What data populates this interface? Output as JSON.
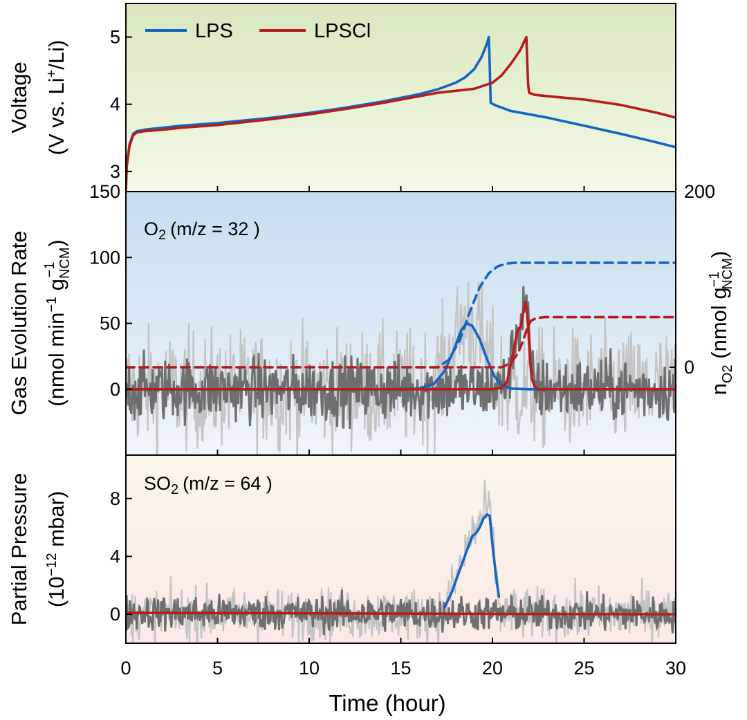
{
  "colors": {
    "lps": "#1565c0",
    "lpscl": "#b71c1c",
    "raw_dark": "#6e6e6e",
    "raw_light": "#c4c4c4",
    "panel1_top": "#d9e8bf",
    "panel1_bottom": "#f4f9e8",
    "panel2_top": "#c6ddef",
    "panel2_bottom": "#f0f5fb",
    "panel3_top": "#fbf6ec",
    "panel3_bottom": "#fbe9e6"
  },
  "chart_data": [
    {
      "id": "voltage",
      "type": "line",
      "ylabel_line1": "Voltage",
      "ylabel_line2_prefix": "(V vs. Li",
      "ylabel_line2_sup": "+",
      "ylabel_line2_suffix": "/Li)",
      "ylim": [
        2.7,
        5.5
      ],
      "yticks": [
        3,
        4,
        5
      ],
      "xlim": [
        0,
        30
      ],
      "legend": {
        "placement": "top-left",
        "entries": [
          "LPS",
          "LPSCl"
        ]
      },
      "series": [
        {
          "name": "LPS",
          "color_key": "lps",
          "x": [
            0,
            0.05,
            0.2,
            0.4,
            0.6,
            1,
            2,
            3,
            5,
            8,
            10,
            12,
            14,
            16,
            17,
            18,
            18.5,
            19,
            19.4,
            19.7,
            19.8,
            19.85,
            19.9,
            20.2,
            21,
            23,
            25,
            27,
            29,
            30
          ],
          "y": [
            2.75,
            3.1,
            3.4,
            3.56,
            3.6,
            3.62,
            3.65,
            3.68,
            3.72,
            3.8,
            3.87,
            3.95,
            4.04,
            4.15,
            4.22,
            4.32,
            4.4,
            4.52,
            4.7,
            4.9,
            5.0,
            4.6,
            4.02,
            3.98,
            3.9,
            3.8,
            3.68,
            3.56,
            3.43,
            3.36
          ]
        },
        {
          "name": "LPSCl",
          "color_key": "lpscl",
          "x": [
            0,
            0.05,
            0.2,
            0.4,
            0.6,
            1,
            2,
            3,
            5,
            8,
            10,
            12,
            14,
            16,
            17,
            18,
            19,
            20,
            20.5,
            21,
            21.5,
            21.85,
            21.9,
            21.95,
            22,
            22.3,
            23,
            25,
            27,
            29,
            30
          ],
          "y": [
            2.72,
            3.08,
            3.38,
            3.54,
            3.58,
            3.6,
            3.62,
            3.65,
            3.69,
            3.78,
            3.85,
            3.93,
            4.02,
            4.12,
            4.17,
            4.2,
            4.23,
            4.32,
            4.43,
            4.6,
            4.8,
            5.0,
            4.6,
            4.28,
            4.17,
            4.14,
            4.12,
            4.07,
            3.99,
            3.87,
            3.8
          ]
        }
      ]
    },
    {
      "id": "o2",
      "type": "line",
      "annotation_species": "O",
      "annotation_sub": "2",
      "annotation_rest": "(m/z = 32 )",
      "ylabel_line1": "Gas Evolution Rate",
      "ylabel_line2_prefix": "(nmol min",
      "ylabel_line2_sup1": "−1",
      "ylabel_line2_mid": " g",
      "ylabel_line2_sub": "NCM",
      "ylabel_line2_sup2": "−1",
      "ylabel_line2_suffix": ")",
      "ylim": [
        -50,
        150
      ],
      "yticks": [
        0,
        50,
        100,
        150
      ],
      "right_axis": {
        "ylim": [
          -100,
          200
        ],
        "yticks": [
          0,
          200
        ],
        "label_n": "n",
        "label_n_sub": "O2",
        "label_prefix": " (nmol g",
        "label_sup": "−1",
        "label_sub": "NCM",
        "label_suffix": ")"
      },
      "xlim": [
        0,
        30
      ],
      "raw_noise_amplitude": {
        "dark": 12,
        "light": 22
      },
      "series": [
        {
          "name": "LPS",
          "color_key": "lps",
          "style": "solid",
          "x": [
            0,
            15,
            16,
            16.8,
            17.4,
            17.9,
            18.3,
            18.6,
            18.9,
            19.3,
            19.7,
            20.1,
            20.5,
            21,
            22,
            30
          ],
          "y": [
            0,
            0,
            0.5,
            4,
            14,
            30,
            45,
            50,
            48,
            38,
            23,
            10,
            3,
            0.5,
            0,
            0
          ]
        },
        {
          "name": "LPSCl",
          "color_key": "lpscl",
          "style": "solid",
          "x": [
            0,
            20,
            20.5,
            20.8,
            21.1,
            21.35,
            21.55,
            21.7,
            21.8,
            21.88,
            21.97,
            22.05,
            22.15,
            22.3,
            22.5,
            30
          ],
          "y": [
            0,
            0,
            1,
            6,
            25,
            44,
            48,
            60,
            66,
            60,
            42,
            22,
            8,
            2,
            0,
            0
          ]
        },
        {
          "name": "LPS",
          "color_key": "lps",
          "style": "dashed",
          "axis": "right",
          "x": [
            0,
            17,
            17.6,
            18.2,
            18.8,
            19.3,
            19.8,
            20.3,
            20.8,
            21.2,
            30
          ],
          "y": [
            0,
            0,
            8,
            30,
            65,
            91,
            107,
            115,
            118,
            119,
            119
          ]
        },
        {
          "name": "LPSCl",
          "color_key": "lpscl",
          "style": "dashed",
          "axis": "right",
          "x": [
            0,
            20.5,
            21,
            21.4,
            21.7,
            21.9,
            22.1,
            22.4,
            22.8,
            30
          ],
          "y": [
            0,
            0,
            5,
            16,
            32,
            45,
            53,
            56,
            57,
            57
          ]
        }
      ]
    },
    {
      "id": "so2",
      "type": "line",
      "annotation_species": "SO",
      "annotation_sub": "2",
      "annotation_rest": "(m/z = 64 )",
      "ylabel_line1": "Partial Pressure",
      "ylabel_line2_prefix": "(10",
      "ylabel_line2_sup": "−12",
      "ylabel_line2_suffix": " mbar)",
      "ylim": [
        -2,
        11
      ],
      "yticks": [
        0,
        4,
        8
      ],
      "xlim": [
        0,
        30
      ],
      "xticks": [
        0,
        5,
        10,
        15,
        20,
        25,
        30
      ],
      "xlabel": "Time (hour)",
      "raw_noise_amplitude": {
        "dark": 0.6,
        "light": 0.9
      },
      "series": [
        {
          "name": "LPS",
          "color_key": "lps",
          "style": "solid",
          "x": [
            17.4,
            17.8,
            18.2,
            18.6,
            18.9,
            19.1,
            19.3,
            19.5,
            19.7,
            19.85,
            20.0,
            20.2,
            20.35
          ],
          "y": [
            0.5,
            1.6,
            3.0,
            4.4,
            5.4,
            5.6,
            6.0,
            6.6,
            6.9,
            6.8,
            4.8,
            2.6,
            1.2
          ]
        },
        {
          "name": "LPSCl",
          "color_key": "lpscl",
          "style": "solid",
          "x": [
            0,
            30
          ],
          "y": [
            0.1,
            0.0
          ]
        }
      ]
    }
  ]
}
